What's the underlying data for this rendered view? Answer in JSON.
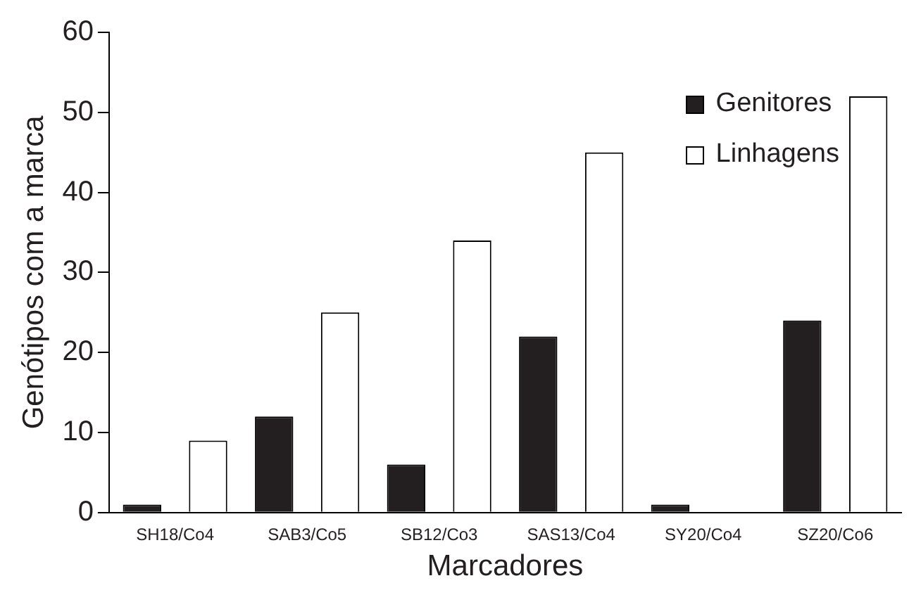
{
  "chart_data": {
    "type": "bar",
    "xlabel": "Marcadores",
    "ylabel": "Genótipos com a marca",
    "categories": [
      "SH18/Co4",
      "SAB3/Co5",
      "SB12/Co3",
      "SAS13/Co4",
      "SY20/Co4",
      "SZ20/Co6"
    ],
    "series": [
      {
        "name": "Genitores",
        "color": "#231f20",
        "values": [
          1,
          12,
          6,
          22,
          1,
          24
        ]
      },
      {
        "name": "Linhagens",
        "color": "#ffffff",
        "values": [
          9,
          25,
          34,
          45,
          0,
          52
        ]
      }
    ],
    "ylim": [
      0,
      60
    ],
    "yticks": [
      0,
      10,
      20,
      30,
      40,
      50,
      60
    ],
    "grid": false,
    "legend": "top right"
  }
}
